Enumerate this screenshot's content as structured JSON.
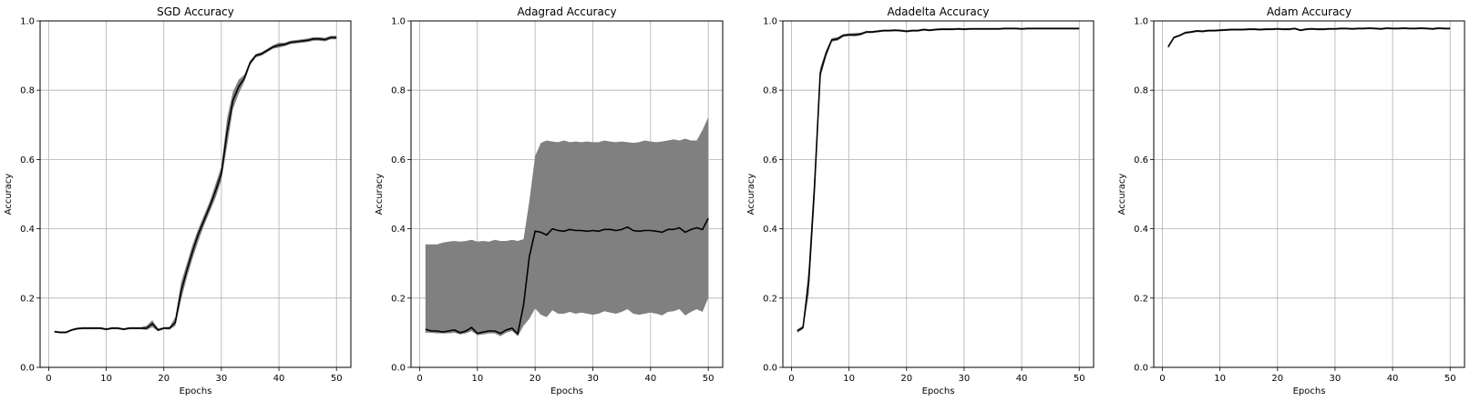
{
  "chart_data": [
    {
      "type": "line",
      "title": "SGD Accuracy",
      "xlabel": "Epochs",
      "ylabel": "Accuracy",
      "xlim": [
        -1.5,
        52.5
      ],
      "ylim": [
        0,
        1.0
      ],
      "xticks": [
        0,
        10,
        20,
        30,
        40,
        50
      ],
      "yticks": [
        0.0,
        0.2,
        0.4,
        0.6,
        0.8,
        1.0
      ],
      "grid": true,
      "band_color": "#808080",
      "line_color": "#000000",
      "x": [
        1,
        2,
        3,
        4,
        5,
        6,
        7,
        8,
        9,
        10,
        11,
        12,
        13,
        14,
        15,
        16,
        17,
        18,
        19,
        20,
        21,
        22,
        23,
        24,
        25,
        26,
        27,
        28,
        29,
        30,
        31,
        32,
        33,
        34,
        35,
        36,
        37,
        38,
        39,
        40,
        41,
        42,
        43,
        44,
        45,
        46,
        47,
        48,
        49,
        50
      ],
      "mean": [
        0.103,
        0.101,
        0.101,
        0.108,
        0.112,
        0.113,
        0.113,
        0.113,
        0.113,
        0.11,
        0.113,
        0.113,
        0.11,
        0.113,
        0.113,
        0.113,
        0.113,
        0.126,
        0.108,
        0.113,
        0.113,
        0.13,
        0.22,
        0.28,
        0.335,
        0.385,
        0.425,
        0.465,
        0.51,
        0.56,
        0.68,
        0.77,
        0.81,
        0.835,
        0.88,
        0.9,
        0.905,
        0.915,
        0.925,
        0.93,
        0.932,
        0.938,
        0.94,
        0.942,
        0.944,
        0.948,
        0.948,
        0.946,
        0.952,
        0.952
      ],
      "upper": [
        0.106,
        0.104,
        0.104,
        0.111,
        0.115,
        0.116,
        0.116,
        0.116,
        0.116,
        0.113,
        0.116,
        0.116,
        0.113,
        0.116,
        0.116,
        0.116,
        0.12,
        0.136,
        0.112,
        0.116,
        0.117,
        0.145,
        0.245,
        0.3,
        0.355,
        0.4,
        0.44,
        0.48,
        0.53,
        0.58,
        0.72,
        0.795,
        0.83,
        0.845,
        0.885,
        0.905,
        0.91,
        0.92,
        0.93,
        0.937,
        0.937,
        0.943,
        0.945,
        0.947,
        0.949,
        0.953,
        0.953,
        0.951,
        0.957,
        0.957
      ],
      "lower": [
        0.1,
        0.098,
        0.098,
        0.105,
        0.109,
        0.11,
        0.11,
        0.11,
        0.11,
        0.107,
        0.11,
        0.11,
        0.107,
        0.11,
        0.11,
        0.11,
        0.108,
        0.116,
        0.104,
        0.11,
        0.109,
        0.12,
        0.195,
        0.26,
        0.315,
        0.365,
        0.41,
        0.45,
        0.49,
        0.54,
        0.64,
        0.745,
        0.79,
        0.825,
        0.872,
        0.895,
        0.9,
        0.91,
        0.92,
        0.923,
        0.927,
        0.933,
        0.935,
        0.937,
        0.939,
        0.943,
        0.943,
        0.941,
        0.947,
        0.947
      ]
    },
    {
      "type": "line",
      "title": "Adagrad Accuracy",
      "xlabel": "Epochs",
      "ylabel": "Accuracy",
      "xlim": [
        -1.5,
        52.5
      ],
      "ylim": [
        0,
        1.0
      ],
      "xticks": [
        0,
        10,
        20,
        30,
        40,
        50
      ],
      "yticks": [
        0.0,
        0.2,
        0.4,
        0.6,
        0.8,
        1.0
      ],
      "grid": true,
      "band_color": "#808080",
      "line_color": "#000000",
      "x": [
        1,
        2,
        3,
        4,
        5,
        6,
        7,
        8,
        9,
        10,
        11,
        12,
        13,
        14,
        15,
        16,
        17,
        18,
        19,
        20,
        21,
        22,
        23,
        24,
        25,
        26,
        27,
        28,
        29,
        30,
        31,
        32,
        33,
        34,
        35,
        36,
        37,
        38,
        39,
        40,
        41,
        42,
        43,
        44,
        45,
        46,
        47,
        48,
        49,
        50
      ],
      "mean": [
        0.11,
        0.105,
        0.105,
        0.102,
        0.105,
        0.108,
        0.1,
        0.105,
        0.115,
        0.098,
        0.102,
        0.105,
        0.105,
        0.098,
        0.108,
        0.113,
        0.097,
        0.18,
        0.32,
        0.393,
        0.39,
        0.382,
        0.4,
        0.395,
        0.393,
        0.398,
        0.395,
        0.395,
        0.393,
        0.395,
        0.393,
        0.398,
        0.398,
        0.395,
        0.398,
        0.405,
        0.395,
        0.393,
        0.395,
        0.395,
        0.393,
        0.39,
        0.398,
        0.398,
        0.403,
        0.39,
        0.398,
        0.403,
        0.398,
        0.43
      ],
      "upper": [
        0.355,
        0.355,
        0.355,
        0.36,
        0.363,
        0.365,
        0.363,
        0.365,
        0.368,
        0.363,
        0.365,
        0.363,
        0.368,
        0.365,
        0.365,
        0.368,
        0.365,
        0.37,
        0.48,
        0.61,
        0.648,
        0.655,
        0.652,
        0.65,
        0.655,
        0.65,
        0.652,
        0.65,
        0.652,
        0.65,
        0.65,
        0.655,
        0.652,
        0.65,
        0.652,
        0.65,
        0.648,
        0.65,
        0.655,
        0.652,
        0.65,
        0.652,
        0.655,
        0.658,
        0.655,
        0.66,
        0.655,
        0.655,
        0.685,
        0.722
      ],
      "lower": [
        0.1,
        0.1,
        0.098,
        0.098,
        0.098,
        0.1,
        0.095,
        0.098,
        0.105,
        0.093,
        0.095,
        0.098,
        0.098,
        0.09,
        0.1,
        0.105,
        0.09,
        0.12,
        0.14,
        0.17,
        0.152,
        0.145,
        0.165,
        0.155,
        0.155,
        0.16,
        0.155,
        0.158,
        0.155,
        0.152,
        0.155,
        0.162,
        0.158,
        0.155,
        0.16,
        0.168,
        0.155,
        0.152,
        0.155,
        0.158,
        0.155,
        0.15,
        0.16,
        0.162,
        0.168,
        0.15,
        0.16,
        0.168,
        0.16,
        0.2
      ]
    },
    {
      "type": "line",
      "title": "Adadelta Accuracy",
      "xlabel": "Epochs",
      "ylabel": "Accuracy",
      "xlim": [
        -1.5,
        52.5
      ],
      "ylim": [
        0,
        1.0
      ],
      "xticks": [
        0,
        10,
        20,
        30,
        40,
        50
      ],
      "yticks": [
        0.0,
        0.2,
        0.4,
        0.6,
        0.8,
        1.0
      ],
      "grid": true,
      "band_color": "#808080",
      "line_color": "#000000",
      "x": [
        1,
        2,
        3,
        4,
        5,
        6,
        7,
        8,
        9,
        10,
        11,
        12,
        13,
        14,
        15,
        16,
        17,
        18,
        19,
        20,
        21,
        22,
        23,
        24,
        25,
        26,
        27,
        28,
        29,
        30,
        31,
        32,
        33,
        34,
        35,
        36,
        37,
        38,
        39,
        40,
        41,
        42,
        43,
        44,
        45,
        46,
        47,
        48,
        49,
        50
      ],
      "mean": [
        0.105,
        0.115,
        0.25,
        0.52,
        0.85,
        0.905,
        0.945,
        0.948,
        0.958,
        0.96,
        0.96,
        0.962,
        0.968,
        0.968,
        0.97,
        0.972,
        0.972,
        0.973,
        0.972,
        0.97,
        0.972,
        0.972,
        0.975,
        0.973,
        0.975,
        0.976,
        0.976,
        0.976,
        0.977,
        0.976,
        0.977,
        0.977,
        0.977,
        0.977,
        0.977,
        0.977,
        0.978,
        0.978,
        0.978,
        0.977,
        0.978,
        0.978,
        0.978,
        0.978,
        0.978,
        0.978,
        0.978,
        0.978,
        0.978,
        0.978
      ],
      "upper": [
        0.11,
        0.12,
        0.29,
        0.56,
        0.865,
        0.915,
        0.95,
        0.953,
        0.962,
        0.964,
        0.965,
        0.966,
        0.971,
        0.971,
        0.973,
        0.975,
        0.975,
        0.976,
        0.975,
        0.973,
        0.975,
        0.975,
        0.978,
        0.976,
        0.978,
        0.979,
        0.979,
        0.979,
        0.98,
        0.979,
        0.98,
        0.98,
        0.98,
        0.98,
        0.98,
        0.98,
        0.981,
        0.981,
        0.981,
        0.98,
        0.981,
        0.981,
        0.981,
        0.981,
        0.981,
        0.981,
        0.981,
        0.981,
        0.981,
        0.981
      ],
      "lower": [
        0.1,
        0.11,
        0.21,
        0.48,
        0.835,
        0.895,
        0.94,
        0.943,
        0.954,
        0.956,
        0.955,
        0.958,
        0.965,
        0.965,
        0.967,
        0.969,
        0.969,
        0.97,
        0.969,
        0.967,
        0.969,
        0.969,
        0.972,
        0.97,
        0.972,
        0.973,
        0.973,
        0.973,
        0.974,
        0.973,
        0.974,
        0.974,
        0.974,
        0.974,
        0.974,
        0.974,
        0.975,
        0.975,
        0.975,
        0.974,
        0.975,
        0.975,
        0.975,
        0.975,
        0.975,
        0.975,
        0.975,
        0.975,
        0.975,
        0.975
      ]
    },
    {
      "type": "line",
      "title": "Adam Accuracy",
      "xlabel": "Epochs",
      "ylabel": "Accuracy",
      "xlim": [
        -1.5,
        52.5
      ],
      "ylim": [
        0,
        1.0
      ],
      "xticks": [
        0,
        10,
        20,
        30,
        40,
        50
      ],
      "yticks": [
        0.0,
        0.2,
        0.4,
        0.6,
        0.8,
        1.0
      ],
      "grid": true,
      "band_color": "#808080",
      "line_color": "#000000",
      "x": [
        1,
        2,
        3,
        4,
        5,
        6,
        7,
        8,
        9,
        10,
        11,
        12,
        13,
        14,
        15,
        16,
        17,
        18,
        19,
        20,
        21,
        22,
        23,
        24,
        25,
        26,
        27,
        28,
        29,
        30,
        31,
        32,
        33,
        34,
        35,
        36,
        37,
        38,
        39,
        40,
        41,
        42,
        43,
        44,
        45,
        46,
        47,
        48,
        49,
        50
      ],
      "mean": [
        0.925,
        0.952,
        0.958,
        0.966,
        0.968,
        0.971,
        0.97,
        0.972,
        0.972,
        0.973,
        0.974,
        0.975,
        0.975,
        0.975,
        0.976,
        0.976,
        0.975,
        0.976,
        0.976,
        0.977,
        0.976,
        0.976,
        0.978,
        0.973,
        0.976,
        0.977,
        0.976,
        0.976,
        0.977,
        0.977,
        0.978,
        0.978,
        0.977,
        0.978,
        0.978,
        0.979,
        0.978,
        0.977,
        0.979,
        0.978,
        0.978,
        0.979,
        0.978,
        0.978,
        0.979,
        0.978,
        0.977,
        0.979,
        0.978,
        0.978
      ],
      "upper": [
        0.929,
        0.955,
        0.961,
        0.969,
        0.971,
        0.974,
        0.973,
        0.975,
        0.975,
        0.976,
        0.977,
        0.978,
        0.978,
        0.978,
        0.979,
        0.979,
        0.978,
        0.979,
        0.979,
        0.98,
        0.979,
        0.979,
        0.981,
        0.976,
        0.979,
        0.98,
        0.979,
        0.979,
        0.98,
        0.98,
        0.981,
        0.981,
        0.98,
        0.981,
        0.981,
        0.982,
        0.981,
        0.98,
        0.982,
        0.981,
        0.981,
        0.982,
        0.981,
        0.981,
        0.982,
        0.981,
        0.98,
        0.982,
        0.981,
        0.981
      ],
      "lower": [
        0.921,
        0.949,
        0.955,
        0.963,
        0.965,
        0.968,
        0.967,
        0.969,
        0.969,
        0.97,
        0.971,
        0.972,
        0.972,
        0.972,
        0.973,
        0.973,
        0.972,
        0.973,
        0.973,
        0.974,
        0.973,
        0.973,
        0.975,
        0.97,
        0.973,
        0.974,
        0.973,
        0.973,
        0.974,
        0.974,
        0.975,
        0.975,
        0.974,
        0.975,
        0.975,
        0.976,
        0.975,
        0.974,
        0.976,
        0.975,
        0.975,
        0.976,
        0.975,
        0.975,
        0.976,
        0.975,
        0.974,
        0.976,
        0.975,
        0.975
      ]
    }
  ]
}
